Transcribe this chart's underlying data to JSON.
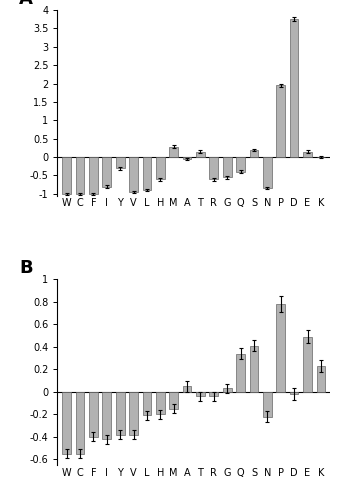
{
  "categories": [
    "W",
    "C",
    "F",
    "I",
    "Y",
    "V",
    "L",
    "H",
    "M",
    "A",
    "T",
    "R",
    "G",
    "Q",
    "S",
    "N",
    "P",
    "D",
    "E",
    "K"
  ],
  "panel_A": {
    "values": [
      -1.0,
      -1.0,
      -1.0,
      -0.8,
      -0.3,
      -0.95,
      -0.9,
      -0.6,
      0.28,
      -0.05,
      0.15,
      -0.6,
      -0.55,
      -0.4,
      0.2,
      -0.85,
      1.95,
      3.75,
      0.15,
      0.0
    ],
    "errors": [
      0.03,
      0.03,
      0.03,
      0.05,
      0.04,
      0.03,
      0.03,
      0.04,
      0.04,
      0.03,
      0.04,
      0.04,
      0.04,
      0.04,
      0.03,
      0.03,
      0.04,
      0.05,
      0.04,
      0.03
    ],
    "ylim": [
      -1.05,
      4.0
    ],
    "yticks": [
      -1.0,
      -0.5,
      0.0,
      0.5,
      1.0,
      1.5,
      2.0,
      2.5,
      3.0,
      3.5,
      4.0
    ],
    "yticklabels": [
      "-1",
      "-0.5",
      "0",
      "0.5",
      "1",
      "1.5",
      "2",
      "2.5",
      "3",
      "3.5",
      "4"
    ],
    "label": "A"
  },
  "panel_B": {
    "values": [
      -0.55,
      -0.55,
      -0.4,
      -0.42,
      -0.38,
      -0.38,
      -0.21,
      -0.2,
      -0.15,
      0.05,
      -0.04,
      -0.04,
      0.03,
      0.34,
      0.41,
      -0.22,
      0.78,
      -0.02,
      0.49,
      0.23
    ],
    "errors": [
      0.04,
      0.04,
      0.04,
      0.04,
      0.04,
      0.04,
      0.04,
      0.04,
      0.04,
      0.05,
      0.04,
      0.04,
      0.04,
      0.05,
      0.05,
      0.05,
      0.07,
      0.05,
      0.06,
      0.05
    ],
    "ylim": [
      -0.65,
      1.0
    ],
    "yticks": [
      -0.6,
      -0.4,
      -0.2,
      0.0,
      0.2,
      0.4,
      0.6,
      0.8,
      1.0
    ],
    "yticklabels": [
      "-0.6",
      "-0.4",
      "-0.2",
      "0",
      "0.2",
      "0.4",
      "0.6",
      "0.8",
      "1"
    ],
    "label": "B"
  },
  "bar_color": "#b2b2b2",
  "bar_edgecolor": "#666666",
  "error_color": "black",
  "bar_width": 0.65
}
